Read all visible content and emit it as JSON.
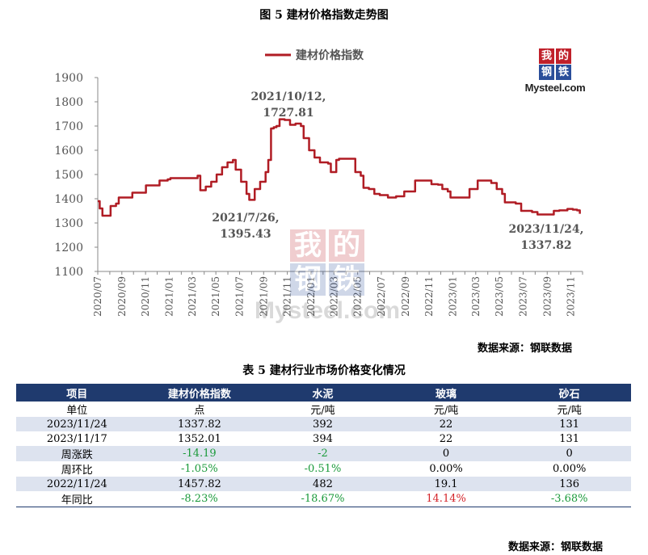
{
  "figure_title": "图 5  建材价格指数走势图",
  "chart_data": {
    "type": "line",
    "title": "",
    "xlabel": "",
    "ylabel": "",
    "ylim": [
      1100,
      1900
    ],
    "yticks": [
      1100,
      1200,
      1300,
      1400,
      1500,
      1600,
      1700,
      1800,
      1900
    ],
    "xtick_labels": [
      "2020/07",
      "2020/09",
      "2020/11",
      "2021/01",
      "2021/03",
      "2021/05",
      "2021/07",
      "2021/09",
      "2021/11",
      "2022/01",
      "2022/03",
      "2022/05",
      "2022/07",
      "2022/09",
      "2022/11",
      "2023/01",
      "2023/03",
      "2023/05",
      "2023/07",
      "2023/09",
      "2023/11"
    ],
    "legend_position": "top-center",
    "grid": false,
    "series": [
      {
        "name": "建材价格指数",
        "color": "#b01c24",
        "points": [
          [
            "2020-07-01",
            1390
          ],
          [
            "2020-07-06",
            1360
          ],
          [
            "2020-07-13",
            1330
          ],
          [
            "2020-07-27",
            1330
          ],
          [
            "2020-08-03",
            1370
          ],
          [
            "2020-08-17",
            1380
          ],
          [
            "2020-08-24",
            1405
          ],
          [
            "2020-09-21",
            1405
          ],
          [
            "2020-09-28",
            1425
          ],
          [
            "2020-10-26",
            1425
          ],
          [
            "2020-11-02",
            1455
          ],
          [
            "2020-11-30",
            1455
          ],
          [
            "2020-12-07",
            1475
          ],
          [
            "2020-12-28",
            1480
          ],
          [
            "2021-01-04",
            1485
          ],
          [
            "2021-03-08",
            1485
          ],
          [
            "2021-03-15",
            1495
          ],
          [
            "2021-03-22",
            1435
          ],
          [
            "2021-04-05",
            1450
          ],
          [
            "2021-04-19",
            1470
          ],
          [
            "2021-05-03",
            1500
          ],
          [
            "2021-05-17",
            1530
          ],
          [
            "2021-05-31",
            1550
          ],
          [
            "2021-06-14",
            1560
          ],
          [
            "2021-06-21",
            1520
          ],
          [
            "2021-07-05",
            1470
          ],
          [
            "2021-07-19",
            1420
          ],
          [
            "2021-07-26",
            1395.43
          ],
          [
            "2021-08-09",
            1440
          ],
          [
            "2021-08-23",
            1470
          ],
          [
            "2021-09-06",
            1510
          ],
          [
            "2021-09-13",
            1560
          ],
          [
            "2021-09-20",
            1690
          ],
          [
            "2021-09-27",
            1695
          ],
          [
            "2021-10-04",
            1700
          ],
          [
            "2021-10-12",
            1727.81
          ],
          [
            "2021-10-25",
            1725
          ],
          [
            "2021-11-08",
            1705
          ],
          [
            "2021-11-22",
            1710
          ],
          [
            "2021-12-06",
            1700
          ],
          [
            "2021-12-13",
            1650
          ],
          [
            "2021-12-27",
            1600
          ],
          [
            "2022-01-10",
            1570
          ],
          [
            "2022-01-24",
            1550
          ],
          [
            "2022-02-14",
            1545
          ],
          [
            "2022-02-21",
            1510
          ],
          [
            "2022-03-07",
            1560
          ],
          [
            "2022-03-14",
            1565
          ],
          [
            "2022-04-11",
            1565
          ],
          [
            "2022-04-25",
            1510
          ],
          [
            "2022-05-09",
            1495
          ],
          [
            "2022-05-16",
            1445
          ],
          [
            "2022-05-30",
            1440
          ],
          [
            "2022-06-13",
            1420
          ],
          [
            "2022-06-27",
            1415
          ],
          [
            "2022-07-18",
            1405
          ],
          [
            "2022-08-08",
            1410
          ],
          [
            "2022-08-22",
            1410
          ],
          [
            "2022-08-29",
            1430
          ],
          [
            "2022-09-19",
            1430
          ],
          [
            "2022-09-26",
            1475
          ],
          [
            "2022-10-24",
            1475
          ],
          [
            "2022-11-07",
            1460
          ],
          [
            "2022-11-24",
            1457.82
          ],
          [
            "2022-12-05",
            1440
          ],
          [
            "2022-12-19",
            1430
          ],
          [
            "2022-12-26",
            1405
          ],
          [
            "2023-02-06",
            1405
          ],
          [
            "2023-02-13",
            1440
          ],
          [
            "2023-02-27",
            1440
          ],
          [
            "2023-03-06",
            1475
          ],
          [
            "2023-03-27",
            1475
          ],
          [
            "2023-04-10",
            1465
          ],
          [
            "2023-04-24",
            1440
          ],
          [
            "2023-05-08",
            1420
          ],
          [
            "2023-05-15",
            1385
          ],
          [
            "2023-06-12",
            1380
          ],
          [
            "2023-06-26",
            1350
          ],
          [
            "2023-07-24",
            1345
          ],
          [
            "2023-08-07",
            1335
          ],
          [
            "2023-09-04",
            1335
          ],
          [
            "2023-09-18",
            1350
          ],
          [
            "2023-10-02",
            1352
          ],
          [
            "2023-10-23",
            1358
          ],
          [
            "2023-11-06",
            1355
          ],
          [
            "2023-11-17",
            1352.01
          ],
          [
            "2023-11-24",
            1337.82
          ]
        ]
      }
    ],
    "annotations": [
      {
        "line1": "2021/10/12,",
        "line2": "1727.81"
      },
      {
        "line1": "2021/7/26,",
        "line2": "1395.43"
      },
      {
        "line1": "2023/11/24,",
        "line2": "1337.82"
      }
    ]
  },
  "logo": {
    "chars": [
      "我",
      "的",
      "钢",
      "铁"
    ],
    "url_text": "Mysteel.com",
    "red": "#c0202a",
    "blue": "#2a4e9a"
  },
  "source_text": "数据来源：钢联数据",
  "table": {
    "title": "表 5 建材行业市场价格变化情况",
    "header_color": "#1f3a6e",
    "headers": [
      "项目",
      "建材价格指数",
      "水泥",
      "玻璃",
      "砂石"
    ],
    "rows": [
      {
        "cells": [
          "单位",
          "点",
          "元/吨",
          "元/吨",
          "元/吨"
        ]
      },
      {
        "cells": [
          "2023/11/24",
          "1337.82",
          "392",
          "22",
          "131"
        ]
      },
      {
        "cells": [
          "2023/11/17",
          "1352.01",
          "394",
          "22",
          "131"
        ]
      },
      {
        "cells": [
          "周涨跌",
          "-14.19",
          "-2",
          "0",
          "0"
        ],
        "colors": [
          "",
          "green",
          "green",
          "",
          ""
        ]
      },
      {
        "cells": [
          "周环比",
          "-1.05%",
          "-0.51%",
          "0.00%",
          "0.00%"
        ],
        "colors": [
          "",
          "green",
          "green",
          "",
          ""
        ]
      },
      {
        "cells": [
          "2022/11/24",
          "1457.82",
          "482",
          "19.1",
          "136"
        ]
      },
      {
        "cells": [
          "年同比",
          "-8.23%",
          "-18.67%",
          "14.14%",
          "-3.68%"
        ],
        "colors": [
          "",
          "green",
          "green",
          "red",
          "green"
        ]
      }
    ]
  },
  "source_text_2": "数据来源：钢联数据"
}
